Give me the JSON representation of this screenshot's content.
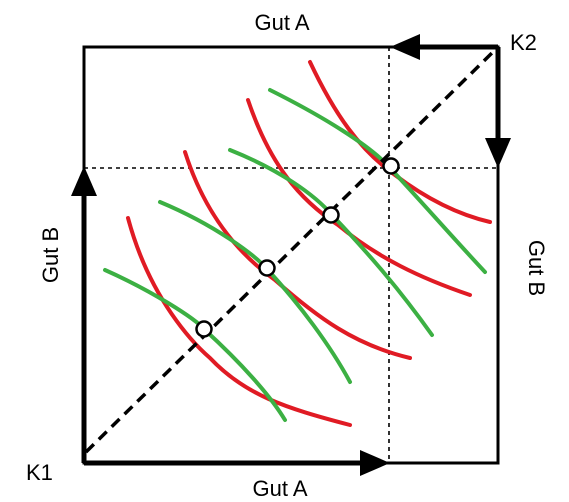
{
  "labels": {
    "top_axis": "Gut A",
    "bottom_axis": "Gut A",
    "left_axis": "Gut B",
    "right_axis": "Gut B",
    "origin_k1": "K1",
    "origin_k2": "K2"
  },
  "colors": {
    "frame": "#000000",
    "indifference_k1": "#e01b24",
    "indifference_k2": "#3cb043",
    "contract_curve": "#000000",
    "tangency_point_fill": "#ffffff"
  },
  "tangency_point_count": 4,
  "indifference_curve_pairs": 4
}
